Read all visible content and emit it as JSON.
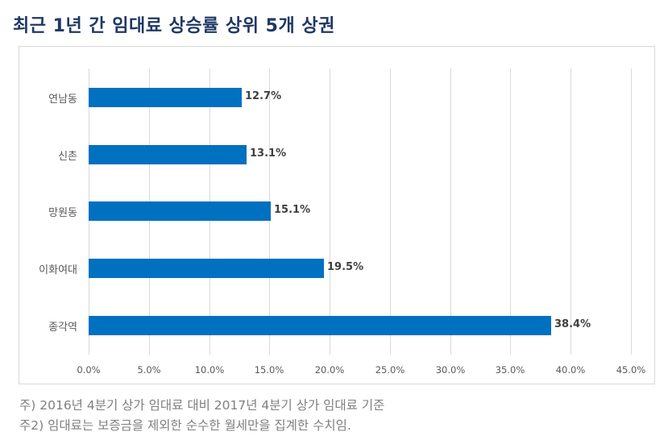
{
  "title": "최근 1년 간 임대료 상승률 상위 5개 상권",
  "colors": {
    "title": "#1f3864",
    "bar": "#0070c0",
    "grid": "#d9d9d9",
    "axis_text": "#595959",
    "note_text": "#7f7f7f"
  },
  "chart_data": {
    "type": "bar",
    "orientation": "horizontal",
    "title": "최근 1년 간 임대료 상승률 상위 5개 상권",
    "categories": [
      "연남동",
      "신촌",
      "망원동",
      "이화여대",
      "종각역"
    ],
    "values": [
      12.7,
      13.1,
      15.1,
      19.5,
      38.4
    ],
    "value_labels": [
      "12.7%",
      "13.1%",
      "15.1%",
      "19.5%",
      "38.4%"
    ],
    "xlabel": "",
    "ylabel": "",
    "xlim": [
      0,
      45
    ],
    "x_ticks": [
      "0.0%",
      "5.0%",
      "10.0%",
      "15.0%",
      "20.0%",
      "25.0%",
      "30.0%",
      "35.0%",
      "40.0%",
      "45.0%"
    ],
    "grid": "vertical",
    "legend": "none"
  },
  "notes": [
    "주) 2016년 4분기 상가 임대료 대비 2017년 4분기 상가 임대료 기준",
    "주2) 임대료는 보증금을 제외한 순수한 월세만을 집계한 수치임."
  ]
}
